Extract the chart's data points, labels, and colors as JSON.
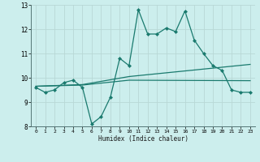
{
  "title": "",
  "xlabel": "Humidex (Indice chaleur)",
  "bg_color": "#cceeed",
  "line_color": "#1a7a6e",
  "grid_color": "#b8d8d6",
  "xlim": [
    -0.5,
    23.5
  ],
  "ylim": [
    8,
    13
  ],
  "yticks": [
    8,
    9,
    10,
    11,
    12,
    13
  ],
  "xticks": [
    0,
    1,
    2,
    3,
    4,
    5,
    6,
    7,
    8,
    9,
    10,
    11,
    12,
    13,
    14,
    15,
    16,
    17,
    18,
    19,
    20,
    21,
    22,
    23
  ],
  "series": [
    {
      "x": [
        0,
        1,
        2,
        3,
        4,
        5,
        6,
        7,
        8,
        9,
        10,
        11,
        12,
        13,
        14,
        15,
        16,
        17,
        18,
        19,
        20,
        21,
        22,
        23
      ],
      "y": [
        9.6,
        9.4,
        9.5,
        9.8,
        9.9,
        9.6,
        8.1,
        8.4,
        9.2,
        10.8,
        10.5,
        12.8,
        11.8,
        11.8,
        12.05,
        11.9,
        12.75,
        11.55,
        11.0,
        10.5,
        10.3,
        9.5,
        9.4,
        9.4
      ],
      "marker": "D",
      "markersize": 2.0,
      "linewidth": 0.9
    },
    {
      "x": [
        0,
        5,
        10,
        23
      ],
      "y": [
        9.65,
        9.72,
        10.05,
        10.55
      ],
      "marker": null,
      "markersize": 0,
      "linewidth": 0.9
    },
    {
      "x": [
        0,
        5,
        10,
        23
      ],
      "y": [
        9.65,
        9.7,
        9.9,
        9.88
      ],
      "marker": null,
      "markersize": 0,
      "linewidth": 0.9
    }
  ]
}
